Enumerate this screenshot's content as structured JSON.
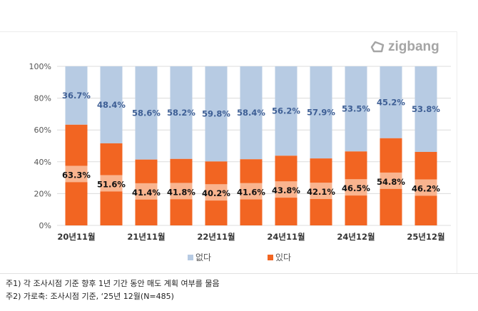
{
  "brand": {
    "logo": "zigbang"
  },
  "chart_data": {
    "type": "bar",
    "stacked": true,
    "categories": [
      "20년11월",
      "",
      "21년11월",
      "",
      "22년11월",
      "",
      "24년11월",
      "",
      "24년12월",
      "",
      "25년12월"
    ],
    "series": [
      {
        "name": "있다",
        "color": "#f26522",
        "label_bg": "#f9b48f",
        "values": [
          63.3,
          51.6,
          41.4,
          41.8,
          40.2,
          41.6,
          43.8,
          42.1,
          46.5,
          54.8,
          46.2
        ],
        "labels": [
          "63.3%",
          "51.6%",
          "41.4%",
          "41.8%",
          "40.2%",
          "41.6%",
          "43.8%",
          "42.1%",
          "46.5%",
          "54.8%",
          "46.2%"
        ]
      },
      {
        "name": "없다",
        "color": "#b7cbe3",
        "label_color": "#3e5f95",
        "values": [
          36.7,
          48.4,
          58.6,
          58.2,
          59.8,
          58.4,
          56.2,
          57.9,
          53.5,
          45.2,
          53.8
        ],
        "labels": [
          "36.7%",
          "48.4%",
          "58.6%",
          "58.2%",
          "59.8%",
          "58.4%",
          "56.2%",
          "57.9%",
          "53.5%",
          "45.2%",
          "53.8%"
        ]
      }
    ],
    "yticks": [
      "0%",
      "20%",
      "40%",
      "60%",
      "80%",
      "100%"
    ],
    "ylim": [
      0,
      100
    ],
    "grid": true,
    "legend": "bottom"
  },
  "legend": {
    "no": "없다",
    "yes": "있다"
  },
  "notes": [
    "주1) 각 조사시점 기준 향후 1년 기간 동안 매도 계획 여부를 물음",
    "주2) 가로축: 조사시점 기준, ‘25년 12월(N=485)"
  ]
}
